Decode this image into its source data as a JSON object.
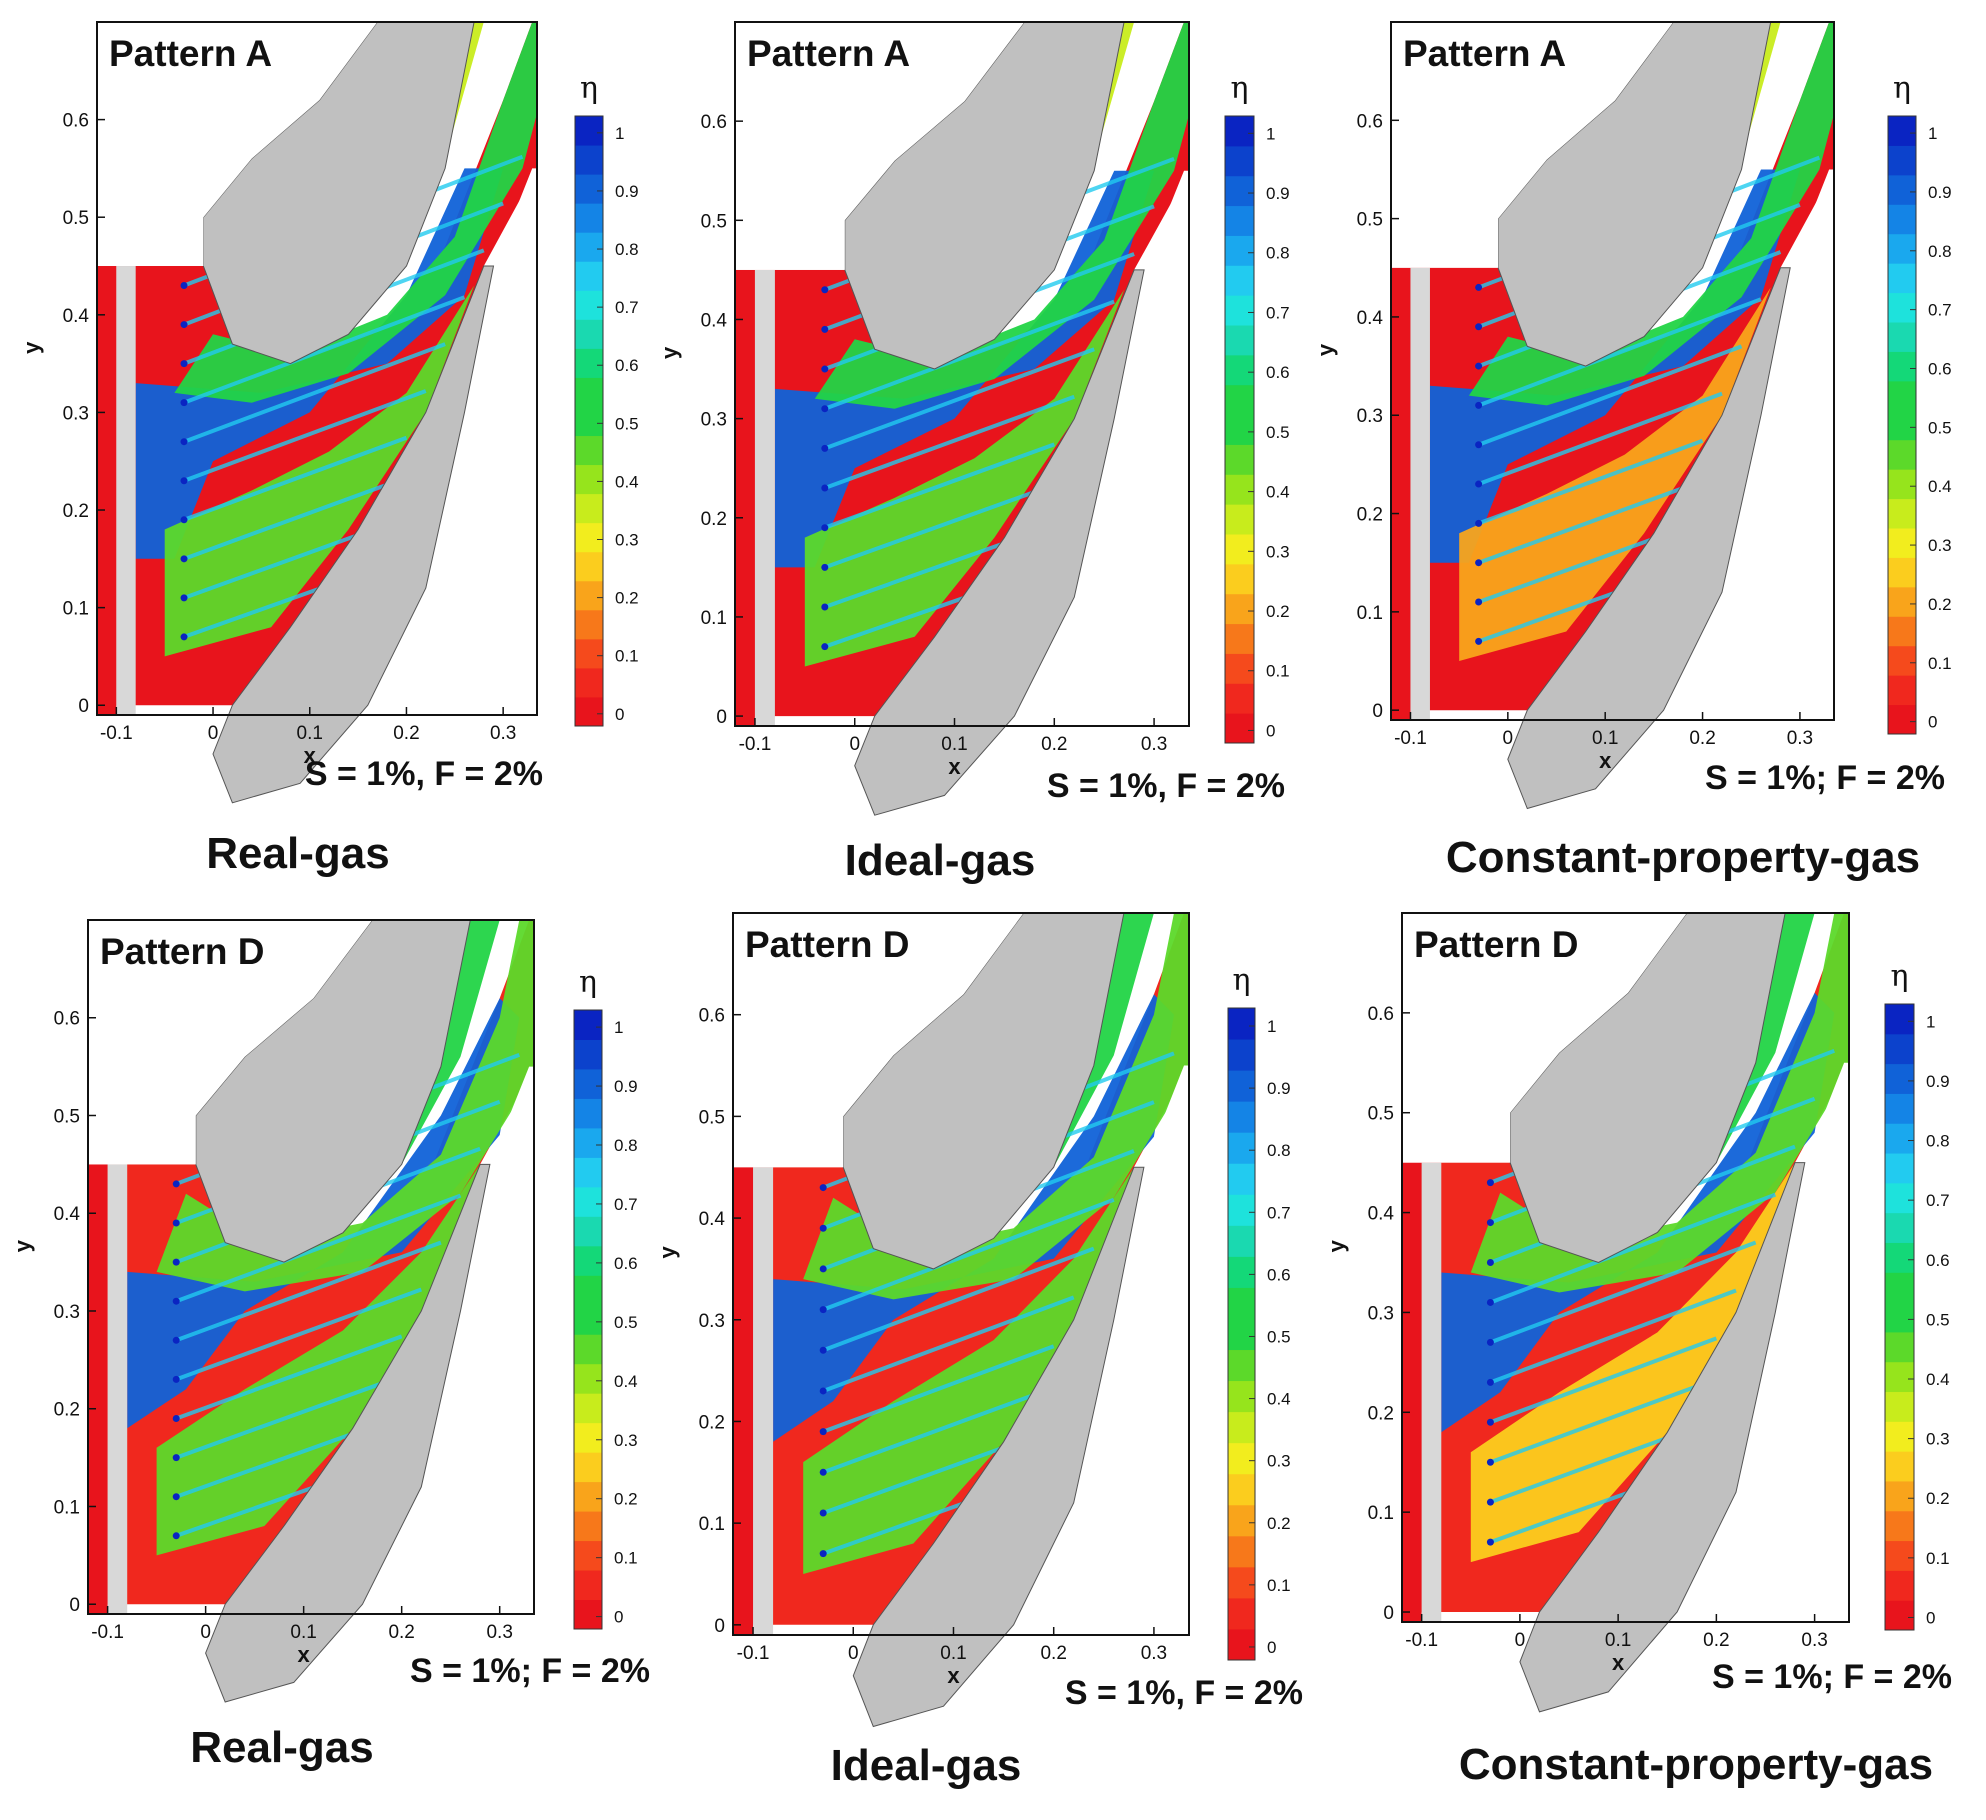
{
  "figure": {
    "colormap": [
      "#e8141c",
      "#f0281e",
      "#f54a1c",
      "#f7781a",
      "#f9a41b",
      "#fbcd1e",
      "#f2ed1e",
      "#c8ec1c",
      "#96e41c",
      "#5cd92a",
      "#22d446",
      "#14d878",
      "#1ad9b0",
      "#1ee2dc",
      "#22cbf0",
      "#1aa8ee",
      "#1484e6",
      "#1062d8",
      "#0c42cc",
      "#0a24c2"
    ],
    "blade_color": "#c0c0c0",
    "wall_color": "#d8d8d8"
  },
  "chart_data": [
    {
      "type": "contour",
      "title": "Pattern A",
      "condition": "S = 1%, F = 2%",
      "caption": "Real-gas",
      "xlabel": "x",
      "ylabel": "y",
      "xlim": [
        -0.12,
        0.335
      ],
      "ylim": [
        -0.01,
        0.7
      ],
      "xticks": [
        -0.1,
        0,
        0.1,
        0.2,
        0.3
      ],
      "xtick_labels": [
        "-0.1",
        "0",
        "0.1",
        "0.2",
        "0.3"
      ],
      "yticks": [
        0,
        0.1,
        0.2,
        0.3,
        0.4,
        0.5,
        0.6
      ],
      "ytick_labels": [
        "0",
        "0.1",
        "0.2",
        "0.3",
        "0.4",
        "0.5",
        "0.6"
      ],
      "colorbar": {
        "label": "η",
        "ticks": [
          0,
          0.1,
          0.2,
          0.3,
          0.4,
          0.5,
          0.6,
          0.7,
          0.8,
          0.9,
          1
        ],
        "tick_labels": [
          "0",
          "0.1",
          "0.2",
          "0.3",
          "0.4",
          "0.5",
          "0.6",
          "0.7",
          "0.8",
          "0.9",
          "1"
        ]
      },
      "variant": "A"
    },
    {
      "type": "contour",
      "title": "Pattern A",
      "condition": "S = 1%, F = 2%",
      "caption": "Ideal-gas",
      "xlabel": "x",
      "ylabel": "y",
      "xlim": [
        -0.12,
        0.335
      ],
      "ylim": [
        -0.01,
        0.7
      ],
      "xticks": [
        -0.1,
        0,
        0.1,
        0.2,
        0.3
      ],
      "xtick_labels": [
        "-0.1",
        "0",
        "0.1",
        "0.2",
        "0.3"
      ],
      "yticks": [
        0,
        0.1,
        0.2,
        0.3,
        0.4,
        0.5,
        0.6
      ],
      "ytick_labels": [
        "0",
        "0.1",
        "0.2",
        "0.3",
        "0.4",
        "0.5",
        "0.6"
      ],
      "colorbar": {
        "label": "η",
        "ticks": [
          0,
          0.1,
          0.2,
          0.3,
          0.4,
          0.5,
          0.6,
          0.7,
          0.8,
          0.9,
          1
        ],
        "tick_labels": [
          "0",
          "0.1",
          "0.2",
          "0.3",
          "0.4",
          "0.5",
          "0.6",
          "0.7",
          "0.8",
          "0.9",
          "1"
        ]
      },
      "variant": "A"
    },
    {
      "type": "contour",
      "title": "Pattern A",
      "condition": "S = 1%; F = 2%",
      "caption": "Constant-property-gas",
      "xlabel": "x",
      "ylabel": "y",
      "xlim": [
        -0.12,
        0.335
      ],
      "ylim": [
        -0.01,
        0.7
      ],
      "xticks": [
        -0.1,
        0,
        0.1,
        0.2,
        0.3
      ],
      "xtick_labels": [
        "-0.1",
        "0",
        "0.1",
        "0.2",
        "0.3"
      ],
      "yticks": [
        0,
        0.1,
        0.2,
        0.3,
        0.4,
        0.5,
        0.6
      ],
      "ytick_labels": [
        "0",
        "0.1",
        "0.2",
        "0.3",
        "0.4",
        "0.5",
        "0.6"
      ],
      "colorbar": {
        "label": "η",
        "ticks": [
          0,
          0.1,
          0.2,
          0.3,
          0.4,
          0.5,
          0.6,
          0.7,
          0.8,
          0.9,
          1
        ],
        "tick_labels": [
          "0",
          "0.1",
          "0.2",
          "0.3",
          "0.4",
          "0.5",
          "0.6",
          "0.7",
          "0.8",
          "0.9",
          "1"
        ]
      },
      "variant": "A"
    },
    {
      "type": "contour",
      "title": "Pattern D",
      "condition": "S = 1%; F = 2%",
      "caption": "Real-gas",
      "xlabel": "x",
      "ylabel": "y",
      "xlim": [
        -0.12,
        0.335
      ],
      "ylim": [
        -0.01,
        0.7
      ],
      "xticks": [
        -0.1,
        0,
        0.1,
        0.2,
        0.3
      ],
      "xtick_labels": [
        "-0.1",
        "0",
        "0.1",
        "0.2",
        "0.3"
      ],
      "yticks": [
        0,
        0.1,
        0.2,
        0.3,
        0.4,
        0.5,
        0.6
      ],
      "ytick_labels": [
        "0",
        "0.1",
        "0.2",
        "0.3",
        "0.4",
        "0.5",
        "0.6"
      ],
      "colorbar": {
        "label": "η",
        "ticks": [
          0,
          0.1,
          0.2,
          0.3,
          0.4,
          0.5,
          0.6,
          0.7,
          0.8,
          0.9,
          1
        ],
        "tick_labels": [
          "0",
          "0.1",
          "0.2",
          "0.3",
          "0.4",
          "0.5",
          "0.6",
          "0.7",
          "0.8",
          "0.9",
          "1"
        ]
      },
      "variant": "D"
    },
    {
      "type": "contour",
      "title": "Pattern D",
      "condition": "S = 1%, F = 2%",
      "caption": "Ideal-gas",
      "xlabel": "x",
      "ylabel": "y",
      "xlim": [
        -0.12,
        0.335
      ],
      "ylim": [
        -0.01,
        0.7
      ],
      "xticks": [
        -0.1,
        0,
        0.1,
        0.2,
        0.3
      ],
      "xtick_labels": [
        "-0.1",
        "0",
        "0.1",
        "0.2",
        "0.3"
      ],
      "yticks": [
        0,
        0.1,
        0.2,
        0.3,
        0.4,
        0.5,
        0.6
      ],
      "ytick_labels": [
        "0",
        "0.1",
        "0.2",
        "0.3",
        "0.4",
        "0.5",
        "0.6"
      ],
      "colorbar": {
        "label": "η",
        "ticks": [
          0,
          0.1,
          0.2,
          0.3,
          0.4,
          0.5,
          0.6,
          0.7,
          0.8,
          0.9,
          1
        ],
        "tick_labels": [
          "0",
          "0.1",
          "0.2",
          "0.3",
          "0.4",
          "0.5",
          "0.6",
          "0.7",
          "0.8",
          "0.9",
          "1"
        ]
      },
      "variant": "D"
    },
    {
      "type": "contour",
      "title": "Pattern D",
      "condition": "S = 1%; F = 2%",
      "caption": "Constant-property-gas",
      "xlabel": "x",
      "ylabel": "y",
      "xlim": [
        -0.12,
        0.335
      ],
      "ylim": [
        -0.01,
        0.7
      ],
      "xticks": [
        -0.1,
        0,
        0.1,
        0.2,
        0.3
      ],
      "xtick_labels": [
        "-0.1",
        "0",
        "0.1",
        "0.2",
        "0.3"
      ],
      "yticks": [
        0,
        0.1,
        0.2,
        0.3,
        0.4,
        0.5,
        0.6
      ],
      "ytick_labels": [
        "0",
        "0.1",
        "0.2",
        "0.3",
        "0.4",
        "0.5",
        "0.6"
      ],
      "colorbar": {
        "label": "η",
        "ticks": [
          0,
          0.1,
          0.2,
          0.3,
          0.4,
          0.5,
          0.6,
          0.7,
          0.8,
          0.9,
          1
        ],
        "tick_labels": [
          "0",
          "0.1",
          "0.2",
          "0.3",
          "0.4",
          "0.5",
          "0.6",
          "0.7",
          "0.8",
          "0.9",
          "1"
        ]
      },
      "variant": "D"
    }
  ]
}
